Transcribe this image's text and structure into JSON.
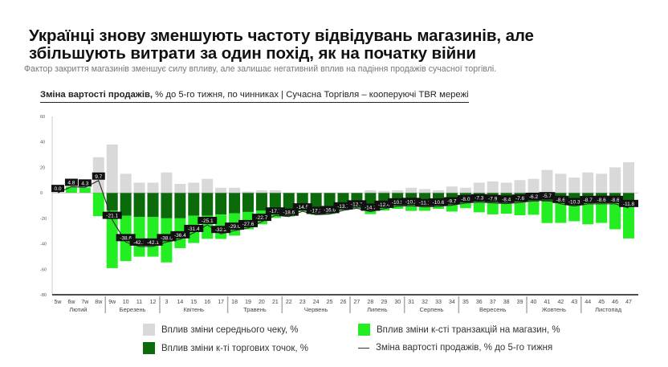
{
  "header": {
    "title_line1": "Українці знову зменшують частоту відвідувань магазинів, але",
    "title_line2": "збільшують витрати за один похід, як на початку війни",
    "subtitle": "Фактор закриття магазинів зменшує силу впливу, але залишає негативний вплив на падіння продажів сучасної торгівлі."
  },
  "colors": {
    "avg_check": "#d9d9d9",
    "stores": "#0b6b0b",
    "transactions": "#22ee22",
    "line": "#333333",
    "label_bg": "#111111"
  },
  "chart_data": {
    "type": "bar",
    "title_bold": "Зміна вартості продажів,",
    "title_rest": " % до 5-го тижня, по чинниках | Сучасна Торгівля  – кооперуючі TBR мережі",
    "ylim": [
      -80,
      60
    ],
    "yticks": [
      -80,
      -60,
      -40,
      -20,
      0,
      20,
      40,
      60
    ],
    "categories": [
      "5w",
      "6w",
      "7w",
      "8w",
      "9w",
      "10",
      "11",
      "12",
      "3",
      "14",
      "15",
      "16",
      "17",
      "18",
      "19",
      "20",
      "21",
      "22",
      "23",
      "24",
      "25",
      "26",
      "27",
      "28",
      "29",
      "30",
      "31",
      "32",
      "33",
      "34",
      "35",
      "36",
      "37",
      "38",
      "39",
      "40",
      "41",
      "42",
      "43",
      "44",
      "45",
      "46",
      "47"
    ],
    "months": [
      {
        "name": "Лютий",
        "count": 4
      },
      {
        "name": "Березень",
        "count": 4
      },
      {
        "name": "Квітень",
        "count": 5
      },
      {
        "name": "Травень",
        "count": 4
      },
      {
        "name": "Червень",
        "count": 5
      },
      {
        "name": "Липень",
        "count": 4
      },
      {
        "name": "Серпень",
        "count": 4
      },
      {
        "name": "Вересень",
        "count": 5
      },
      {
        "name": "Жовтень",
        "count": 4
      },
      {
        "name": "Листопад",
        "count": 4
      }
    ],
    "series": [
      {
        "name": "Вплив зміни середнього чеку, %",
        "type": "bar",
        "values": [
          0,
          0,
          0,
          28,
          38,
          15,
          8,
          8,
          16,
          7,
          8,
          11,
          4,
          4,
          1,
          2,
          2,
          0,
          0,
          0,
          0,
          0,
          0,
          2,
          1.5,
          2,
          4,
          3,
          2,
          5,
          4,
          8,
          9,
          8,
          10,
          11,
          18,
          15,
          12,
          16,
          15,
          20,
          24
        ]
      },
      {
        "name": "Вплив зміни к-ті торгових точок, %",
        "type": "bar",
        "values": [
          0,
          0,
          0,
          0,
          -14,
          -18,
          -19,
          -19,
          -20,
          -20,
          -18,
          -18,
          -17,
          -16,
          -15,
          -14,
          -14,
          -14,
          -13,
          -12,
          -12,
          -11,
          -10,
          -10,
          -10,
          -9,
          -9,
          -9,
          -8,
          -8,
          -8,
          -7,
          -7,
          -7,
          -7,
          -7,
          -7,
          -7,
          -7,
          -7,
          -7,
          -7,
          -7
        ]
      },
      {
        "name": "Вплив зміни к-сті транзакцій на магазин, %",
        "type": "bar",
        "values": [
          0,
          4.8,
          4.3,
          -18.3,
          -45.1,
          -35.6,
          -31.1,
          -31.1,
          -34.6,
          -23.4,
          -21.4,
          -18.1,
          -19.2,
          -17.6,
          -13.6,
          -10.7,
          -5.7,
          -4.6,
          -1.5,
          -5.2,
          -4.6,
          -2.7,
          -2.1,
          -6.7,
          -3.9,
          -3.5,
          -5.2,
          -5.1,
          -4.6,
          -6.7,
          -4,
          -8.3,
          -9.9,
          -9.4,
          -10.6,
          -10.2,
          -16.7,
          -16.6,
          -15.3,
          -17.7,
          -16.6,
          -21.6,
          -28.8
        ]
      },
      {
        "name": "Зміна вартості продажів, % до 5-го тижня",
        "type": "line",
        "values": [
          0.0,
          4.8,
          4.3,
          9.7,
          -21.1,
          -38.6,
          -42.1,
          -42.1,
          -38.6,
          -36.4,
          -31.4,
          -25.1,
          -32.2,
          -29.6,
          -27.6,
          -22.7,
          -17.7,
          -18.6,
          -14.5,
          -17.2,
          -16.6,
          -13.7,
          -12.1,
          -14.7,
          -12.4,
          -10.5,
          -10.2,
          -11.1,
          -10.6,
          -9.7,
          -8.0,
          -7.3,
          -7.9,
          -8.4,
          -7.6,
          -6.2,
          -5.7,
          -8.6,
          -10.3,
          -8.7,
          -8.6,
          -8.6,
          -11.8
        ]
      }
    ]
  }
}
